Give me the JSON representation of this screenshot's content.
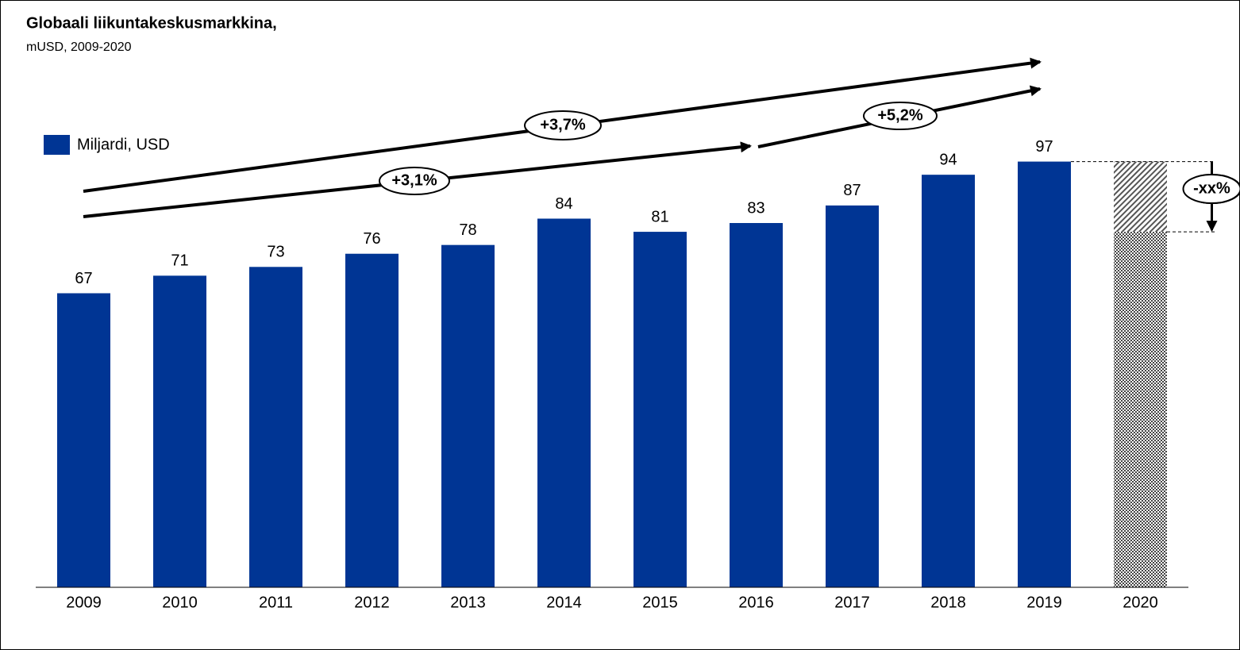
{
  "chart_data": {
    "type": "bar",
    "title": "Globaali liikuntakeskusmarkkina,",
    "subtitle": "mUSD, 2009-2020",
    "categories": [
      "2009",
      "2010",
      "2011",
      "2012",
      "2013",
      "2014",
      "2015",
      "2016",
      "2017",
      "2018",
      "2019",
      "2020"
    ],
    "series": [
      {
        "name": "Miljardi, USD",
        "color": "#003594",
        "values": [
          67,
          71,
          73,
          76,
          78,
          84,
          81,
          83,
          87,
          94,
          97,
          81
        ],
        "value_labels": [
          "67",
          "71",
          "73",
          "76",
          "78",
          "84",
          "81",
          "83",
          "87",
          "94",
          "97",
          null
        ]
      }
    ],
    "range_top": 97,
    "ylim": [
      0,
      100
    ],
    "annotations": [
      "+3,7%",
      "+3,1%",
      "+5,2%",
      "-xx%"
    ]
  }
}
